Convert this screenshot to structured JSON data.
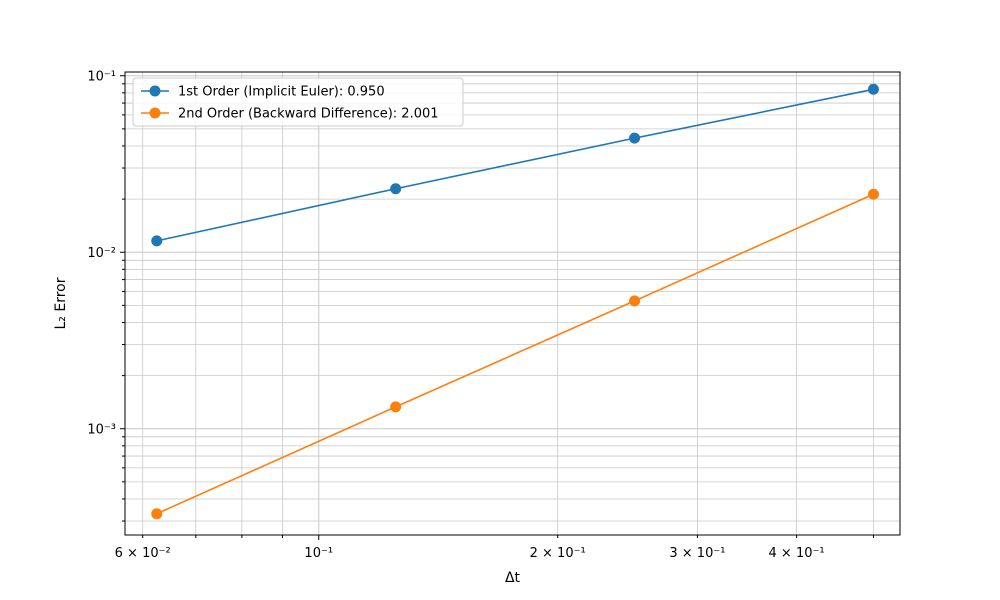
{
  "chart_data": {
    "type": "line",
    "xscale": "log",
    "yscale": "log",
    "xlim": [
      0.057,
      0.54
    ],
    "ylim": [
      0.00025,
      0.105
    ],
    "xlabel": "Δt",
    "ylabel": "L₂ Error",
    "grid": "major and minor, both axes",
    "legend_position": "upper-left",
    "x": [
      0.0625,
      0.125,
      0.25,
      0.5
    ],
    "series": [
      {
        "name": "1st Order (Implicit Euler): 0.950",
        "color": "#1f77b4",
        "marker": "circle",
        "values": [
          0.0116,
          0.0229,
          0.0443,
          0.0838
        ]
      },
      {
        "name": "2nd Order (Backward Difference): 2.001",
        "color": "#ff7f0e",
        "marker": "circle",
        "values": [
          0.00033,
          0.00133,
          0.0053,
          0.0213
        ]
      }
    ],
    "x_ticks": [
      {
        "value": 0.06,
        "label": "6 × 10⁻²"
      },
      {
        "value": 0.1,
        "label": "10⁻¹"
      },
      {
        "value": 0.2,
        "label": "2 × 10⁻¹"
      },
      {
        "value": 0.3,
        "label": "3 × 10⁻¹"
      },
      {
        "value": 0.4,
        "label": "4 × 10⁻¹"
      }
    ],
    "y_ticks": [
      {
        "value": 0.001,
        "label": "10⁻³"
      },
      {
        "value": 0.01,
        "label": "10⁻²"
      },
      {
        "value": 0.1,
        "label": "10⁻¹"
      }
    ]
  }
}
